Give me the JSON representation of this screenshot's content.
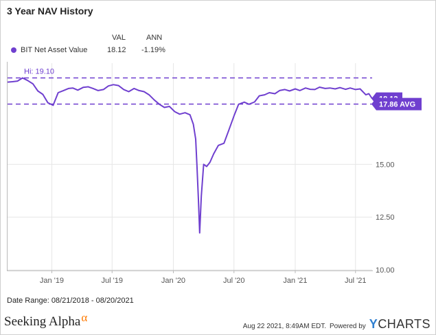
{
  "chart_data": {
    "type": "line",
    "title": "3 Year NAV History",
    "legend_headers": [
      "VAL",
      "ANN"
    ],
    "series": [
      {
        "name": "BIT Net Asset Value",
        "val": "18.12",
        "ann": "-1.19%",
        "color": "#6f3fcf",
        "x": [
          "2018-08-21",
          "2018-09-05",
          "2018-09-20",
          "2018-10-05",
          "2018-10-20",
          "2018-11-05",
          "2018-11-20",
          "2018-12-05",
          "2018-12-20",
          "2019-01-05",
          "2019-01-20",
          "2019-02-05",
          "2019-02-20",
          "2019-03-05",
          "2019-03-20",
          "2019-04-05",
          "2019-04-20",
          "2019-05-05",
          "2019-05-20",
          "2019-06-05",
          "2019-06-20",
          "2019-07-05",
          "2019-07-20",
          "2019-08-05",
          "2019-08-20",
          "2019-09-05",
          "2019-09-20",
          "2019-10-05",
          "2019-10-20",
          "2019-11-05",
          "2019-11-20",
          "2019-12-05",
          "2019-12-20",
          "2020-01-05",
          "2020-01-20",
          "2020-02-05",
          "2020-02-20",
          "2020-03-01",
          "2020-03-08",
          "2020-03-12",
          "2020-03-16",
          "2020-03-20",
          "2020-03-25",
          "2020-04-01",
          "2020-04-10",
          "2020-04-20",
          "2020-05-01",
          "2020-05-15",
          "2020-06-01",
          "2020-06-15",
          "2020-07-01",
          "2020-07-15",
          "2020-08-01",
          "2020-08-15",
          "2020-09-01",
          "2020-09-15",
          "2020-10-01",
          "2020-10-15",
          "2020-11-01",
          "2020-11-15",
          "2020-12-01",
          "2020-12-15",
          "2021-01-01",
          "2021-01-15",
          "2021-02-01",
          "2021-02-15",
          "2021-03-01",
          "2021-03-15",
          "2021-04-01",
          "2021-04-15",
          "2021-05-01",
          "2021-05-15",
          "2021-06-01",
          "2021-06-15",
          "2021-07-01",
          "2021-07-15",
          "2021-08-01",
          "2021-08-10",
          "2021-08-20"
        ],
        "y": [
          18.9,
          18.92,
          18.95,
          19.1,
          18.98,
          18.82,
          18.48,
          18.32,
          17.92,
          17.8,
          18.4,
          18.5,
          18.6,
          18.62,
          18.52,
          18.65,
          18.68,
          18.6,
          18.5,
          18.55,
          18.72,
          18.78,
          18.74,
          18.55,
          18.45,
          18.6,
          18.5,
          18.45,
          18.3,
          18.05,
          17.85,
          17.7,
          17.75,
          17.5,
          17.38,
          17.45,
          17.35,
          16.9,
          16.2,
          14.9,
          13.4,
          11.75,
          13.5,
          15.0,
          14.9,
          15.1,
          15.5,
          15.9,
          16.0,
          16.6,
          17.3,
          17.85,
          17.95,
          17.85,
          17.96,
          18.25,
          18.3,
          18.4,
          18.35,
          18.5,
          18.55,
          18.48,
          18.58,
          18.5,
          18.62,
          18.56,
          18.55,
          18.66,
          18.6,
          18.62,
          18.58,
          18.64,
          18.56,
          18.62,
          18.55,
          18.58,
          18.3,
          18.35,
          18.12
        ]
      }
    ],
    "xlim": [
      "2018-08-21",
      "2021-08-20"
    ],
    "ylim": [
      10.0,
      19.8
    ],
    "x_ticks": [
      {
        "label": "Jan '19",
        "date": "2019-01-01"
      },
      {
        "label": "Jul '19",
        "date": "2019-07-01"
      },
      {
        "label": "Jan '20",
        "date": "2020-01-01"
      },
      {
        "label": "Jul '20",
        "date": "2020-07-01"
      },
      {
        "label": "Jan '21",
        "date": "2021-01-01"
      },
      {
        "label": "Jul '21",
        "date": "2021-07-01"
      }
    ],
    "y_ticks": [
      {
        "label": "10.00",
        "value": 10.0
      },
      {
        "label": "12.50",
        "value": 12.5
      },
      {
        "label": "15.00",
        "value": 15.0
      }
    ],
    "hi_label": "Hi: 19.10",
    "hi_value": 19.1,
    "avg_label": "17.86 AVG",
    "avg_value": 17.86,
    "last_label": "18.12",
    "last_value": 18.12,
    "grid": true
  },
  "date_range": "Date Range: 08/21/2018 - 08/20/2021",
  "brand": {
    "name": "Seeking Alpha",
    "mark": "α"
  },
  "footer": {
    "timestamp": "Aug 22 2021, 8:49AM EDT.",
    "powered": "Powered by",
    "ycharts_y": "Y",
    "ycharts_rest": "CHARTS"
  }
}
